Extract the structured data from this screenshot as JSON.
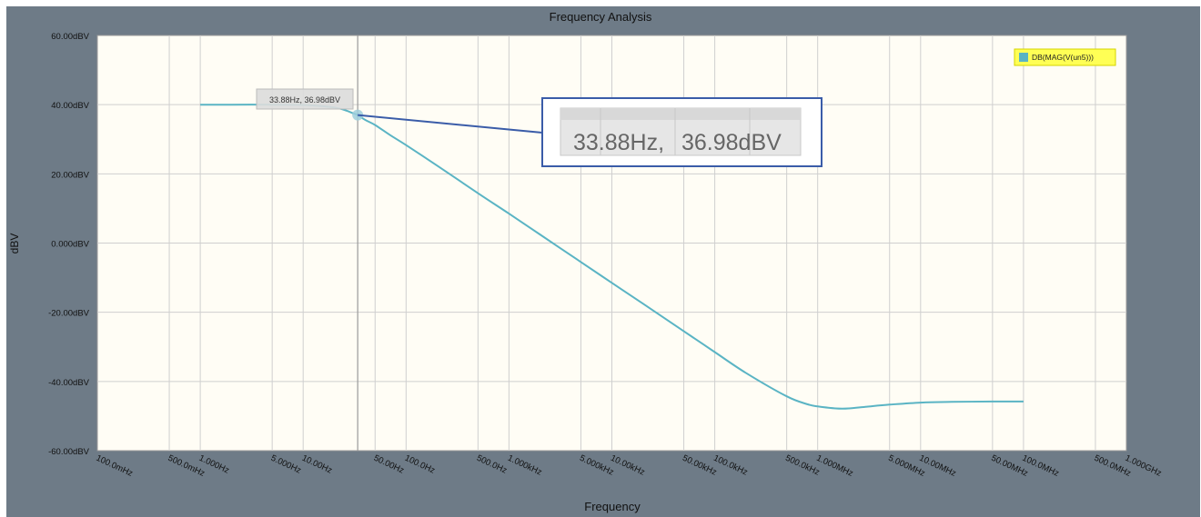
{
  "chart_data": {
    "type": "line",
    "title": "Frequency Analysis",
    "xlabel": "Frequency",
    "ylabel": "dBV",
    "x_scale": "log",
    "xlim": [
      "100.0mHz",
      "1.000GHz"
    ],
    "ylim": [
      -60,
      60
    ],
    "grid": true,
    "legend_position": "top-right",
    "y_ticks": [
      "60.00dBV",
      "40.00dBV",
      "20.00dBV",
      "0.000dBV",
      "-20.00dBV",
      "-40.00dBV",
      "-60.00dBV"
    ],
    "x_ticks": [
      "100.0mHz",
      "500.0mHz",
      "1.000Hz",
      "5.000Hz",
      "10.00Hz",
      "50.00Hz",
      "100.0Hz",
      "500.0Hz",
      "1.000kHz",
      "5.000kHz",
      "10.00kHz",
      "50.00kHz",
      "100.0kHz",
      "500.0kHz",
      "1.000MHz",
      "5.000MHz",
      "10.00MHz",
      "50.00MHz",
      "100.0MHz",
      "500.0MHz",
      "1.000GHz"
    ],
    "x_tick_values_hz": [
      0.1,
      0.5,
      1,
      5,
      10,
      50,
      100,
      500,
      1000,
      5000,
      10000,
      50000,
      100000,
      500000,
      1000000,
      5000000,
      10000000,
      50000000,
      100000000,
      500000000,
      1000000000
    ],
    "series": [
      {
        "name": "DB(MAG(V(un5)))",
        "color": "#5ab4c4",
        "x_hz": [
          1,
          2,
          5,
          10,
          15,
          20,
          25,
          30,
          33.88,
          40,
          50,
          70,
          100,
          200,
          500,
          1000,
          2000,
          5000,
          10000,
          20000,
          50000,
          100000,
          200000,
          500000,
          800000,
          1000000,
          1500000,
          2000000,
          3000000,
          5000000,
          10000000,
          20000000,
          50000000,
          100000000
        ],
        "y_dbv": [
          40,
          40,
          40,
          39.9,
          39.6,
          39.2,
          38.5,
          37.6,
          36.98,
          35.6,
          34.1,
          31.2,
          28.3,
          22.4,
          14.4,
          8.5,
          2.5,
          -5.5,
          -11.5,
          -17.5,
          -25.5,
          -31.5,
          -37.5,
          -44.3,
          -46.6,
          -47.2,
          -47.8,
          -47.8,
          -47.3,
          -46.7,
          -46.1,
          -45.9,
          -45.8,
          -45.8
        ]
      }
    ],
    "cursor": {
      "x_hz": 33.88,
      "y_dbv": 36.98,
      "label": "33.88Hz, 36.98dBV",
      "zoom_x_text": "33.88Hz,",
      "zoom_y_text": "36.98dBV"
    }
  },
  "colors": {
    "frame": "#6e7b87",
    "plot_bg": "#fffdf5",
    "grid": "#cfcfcf",
    "curve": "#5ab4c4",
    "callout_border": "#3a5ca8",
    "legend_bg": "#ffff55"
  }
}
